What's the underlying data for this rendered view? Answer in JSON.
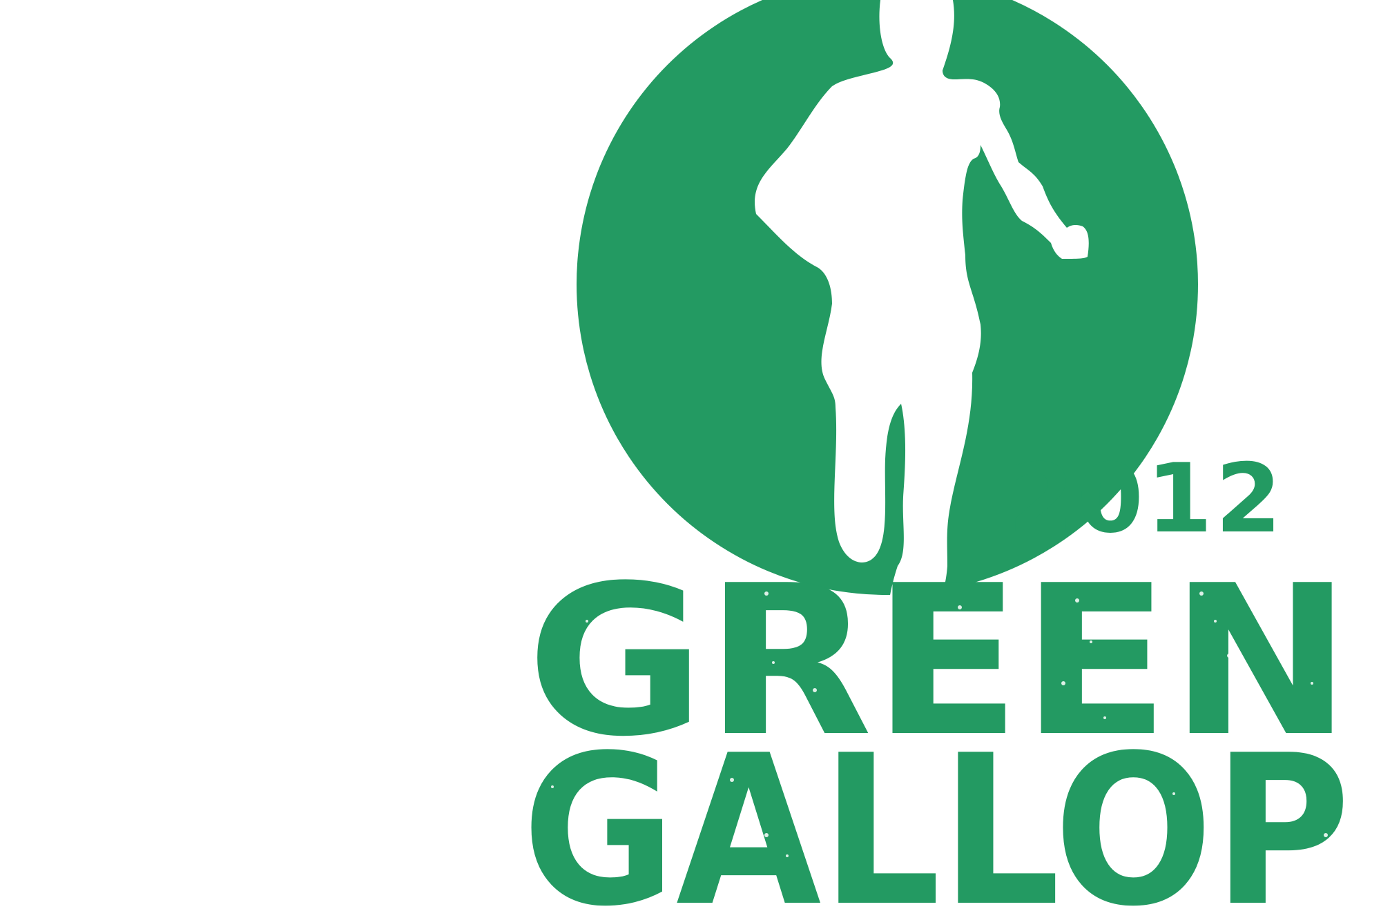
{
  "logo": {
    "year": "2012",
    "line1": "GREEN",
    "line2": "GALLOP",
    "colors": {
      "brand_green": "#239a62",
      "background": "#ffffff"
    }
  }
}
